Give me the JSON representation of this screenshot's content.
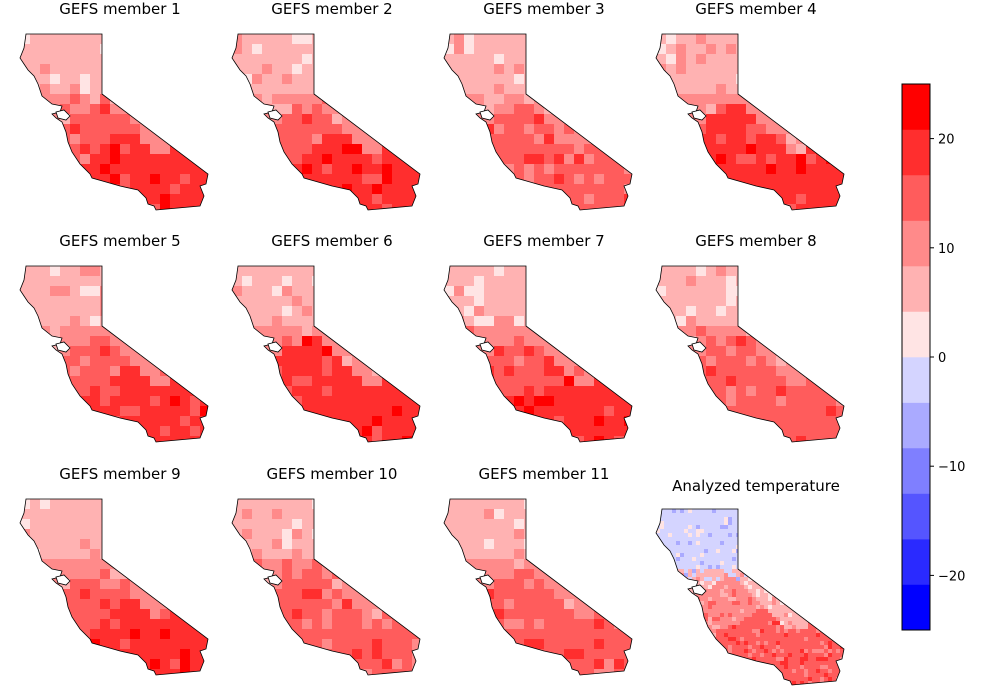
{
  "chart_data": {
    "type": "heatmap",
    "panels": [
      {
        "title": "GEFS member 1",
        "levels": [
          1,
          2,
          3,
          4
        ]
      },
      {
        "title": "GEFS member 2",
        "levels": [
          1,
          2,
          3,
          4
        ]
      },
      {
        "title": "GEFS member 3",
        "levels": [
          1,
          2,
          3,
          3
        ]
      },
      {
        "title": "GEFS member 4",
        "levels": [
          1,
          2,
          4,
          4
        ]
      },
      {
        "title": "GEFS member 5",
        "levels": [
          1,
          2,
          3,
          4
        ]
      },
      {
        "title": "GEFS member 6",
        "levels": [
          1,
          2,
          4,
          4
        ]
      },
      {
        "title": "GEFS member 7",
        "levels": [
          1,
          2,
          3,
          4
        ]
      },
      {
        "title": "GEFS member 8",
        "levels": [
          1,
          2,
          3,
          3
        ]
      },
      {
        "title": "GEFS member 9",
        "levels": [
          1,
          2,
          3,
          4
        ]
      },
      {
        "title": "GEFS member 10",
        "levels": [
          1,
          2,
          3,
          3
        ]
      },
      {
        "title": "GEFS member 11",
        "levels": [
          1,
          2,
          3,
          3
        ]
      },
      {
        "title": "Analyzed temperature",
        "levels": [
          -1,
          1,
          2,
          3
        ]
      }
    ],
    "colorbar": {
      "boundaries": [
        -25,
        -20.83,
        -16.67,
        -12.5,
        -8.33,
        -4.17,
        0,
        4.17,
        8.33,
        12.5,
        16.67,
        20.83,
        25
      ],
      "colors": [
        "#0000ff",
        "#2a2aff",
        "#5555ff",
        "#7f7fff",
        "#aaaaff",
        "#d4d4ff",
        "#ffe4e4",
        "#ffb2b2",
        "#ff8a8a",
        "#ff5c5c",
        "#ff2e2e",
        "#ff0000"
      ],
      "ticks": [
        -20,
        -10,
        0,
        10,
        20
      ],
      "tick_labels": [
        "−20",
        "−10",
        "0",
        "10",
        "20"
      ],
      "range": [
        -25,
        25
      ]
    }
  }
}
